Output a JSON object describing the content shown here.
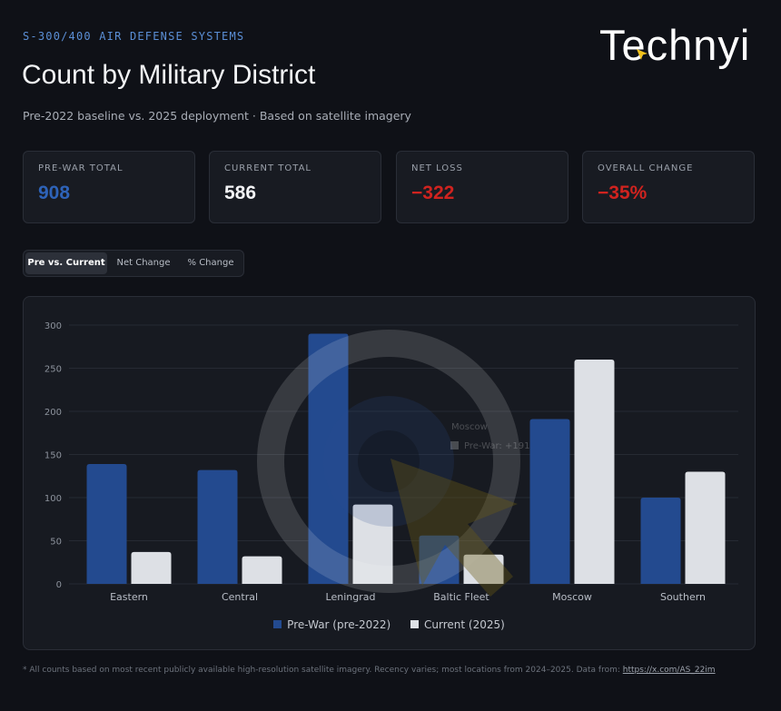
{
  "header": {
    "eyebrow": "S-300/400 AIR DEFENSE SYSTEMS",
    "title": "Count by Military District",
    "subtitle": "Pre-2022 baseline vs. 2025 deployment · Based on satellite imagery",
    "logo_text": "Technyi"
  },
  "stats": [
    {
      "label": "PRE-WAR TOTAL",
      "value": "908",
      "color": "#2e63b8"
    },
    {
      "label": "CURRENT TOTAL",
      "value": "586",
      "color": "#f2f3f5"
    },
    {
      "label": "NET LOSS",
      "value": "−322",
      "color": "#d0231f"
    },
    {
      "label": "OVERALL CHANGE",
      "value": "−35%",
      "color": "#d0231f"
    }
  ],
  "tabs": [
    {
      "label": "Pre vs. Current",
      "active": true
    },
    {
      "label": "Net Change",
      "active": false
    },
    {
      "label": "% Change",
      "active": false
    }
  ],
  "tooltip": {
    "title": "Moscow",
    "line": "Pre-War: +191"
  },
  "chart_data": {
    "type": "bar",
    "categories": [
      "Eastern",
      "Central",
      "Leningrad",
      "Baltic Fleet",
      "Moscow",
      "Southern"
    ],
    "series": [
      {
        "name": "Pre-War (pre-2022)",
        "color": "#234a8f",
        "values": [
          139,
          132,
          290,
          56,
          191,
          100
        ]
      },
      {
        "name": "Current (2025)",
        "color": "#dde0e5",
        "values": [
          37,
          32,
          92,
          34,
          260,
          130
        ]
      }
    ],
    "ylim": [
      0,
      300
    ],
    "yticks": [
      0,
      50,
      100,
      150,
      200,
      250,
      300
    ],
    "grid": true,
    "legend": "bottom-center"
  },
  "footnote": {
    "text": "* All counts based on most recent publicly available high-resolution satellite imagery. Recency varies; most locations from 2024–2025. Data from: ",
    "link": "https://x.com/AS_22im"
  }
}
